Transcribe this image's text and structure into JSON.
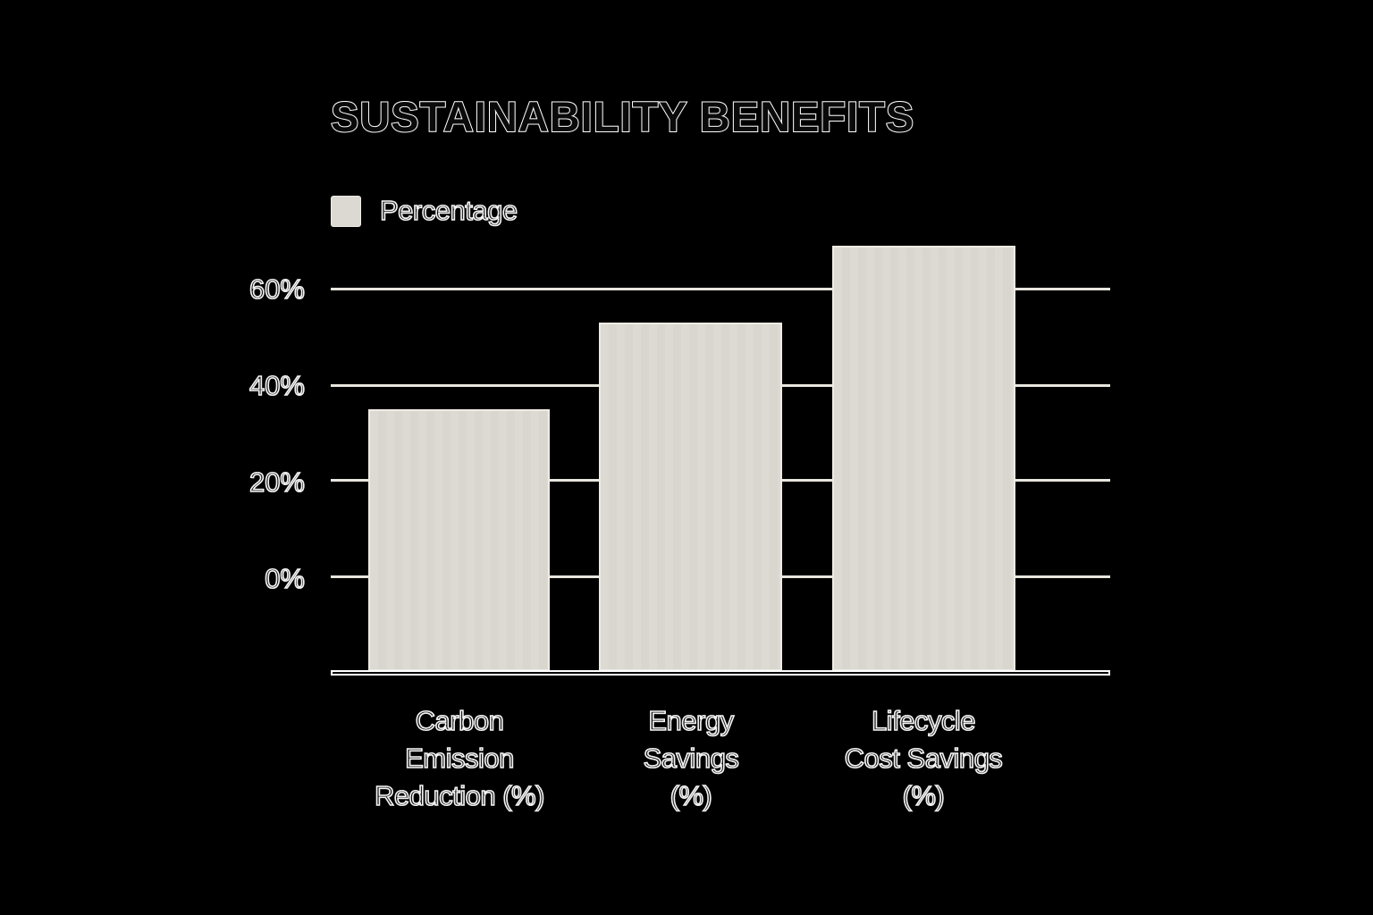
{
  "chart_data": {
    "type": "bar",
    "title": "SUSTAINABILITY BENEFITS",
    "categories": [
      "Carbon Emission Reduction (%)",
      "Energy Savings (%)",
      "Lifecycle Cost Savings (%)"
    ],
    "series": [
      {
        "name": "Percentage",
        "values": [
          35,
          53,
          69
        ]
      }
    ],
    "xlabel": "",
    "ylabel": "",
    "y_ticks": [
      "0%",
      "20%",
      "40%",
      "60%"
    ],
    "ylim": [
      -20,
      70
    ],
    "grid": true,
    "legend_position": "top-left"
  },
  "title": "SUSTAINABILITY BENEFITS",
  "legend": {
    "label": "Percentage",
    "color": "#dcd9d2"
  },
  "colors": {
    "background": "#000000",
    "bar_fill": "#dcd9d2",
    "bar_border": "#eeebe4",
    "gridline": "#e8e5de",
    "text_stroke": "#ffffff"
  },
  "y_axis": {
    "ticks": [
      {
        "label": "60%",
        "value": 60
      },
      {
        "label": "40%",
        "value": 40
      },
      {
        "label": "20%",
        "value": 20
      },
      {
        "label": "0%",
        "value": 0
      }
    ]
  },
  "bars": [
    {
      "label": "Carbon\nEmission\nReduction (%)",
      "value": 35
    },
    {
      "label": "Energy\nSavings\n(%)",
      "value": 53
    },
    {
      "label": "Lifecycle\nCost Savings\n(%)",
      "value": 69
    }
  ]
}
